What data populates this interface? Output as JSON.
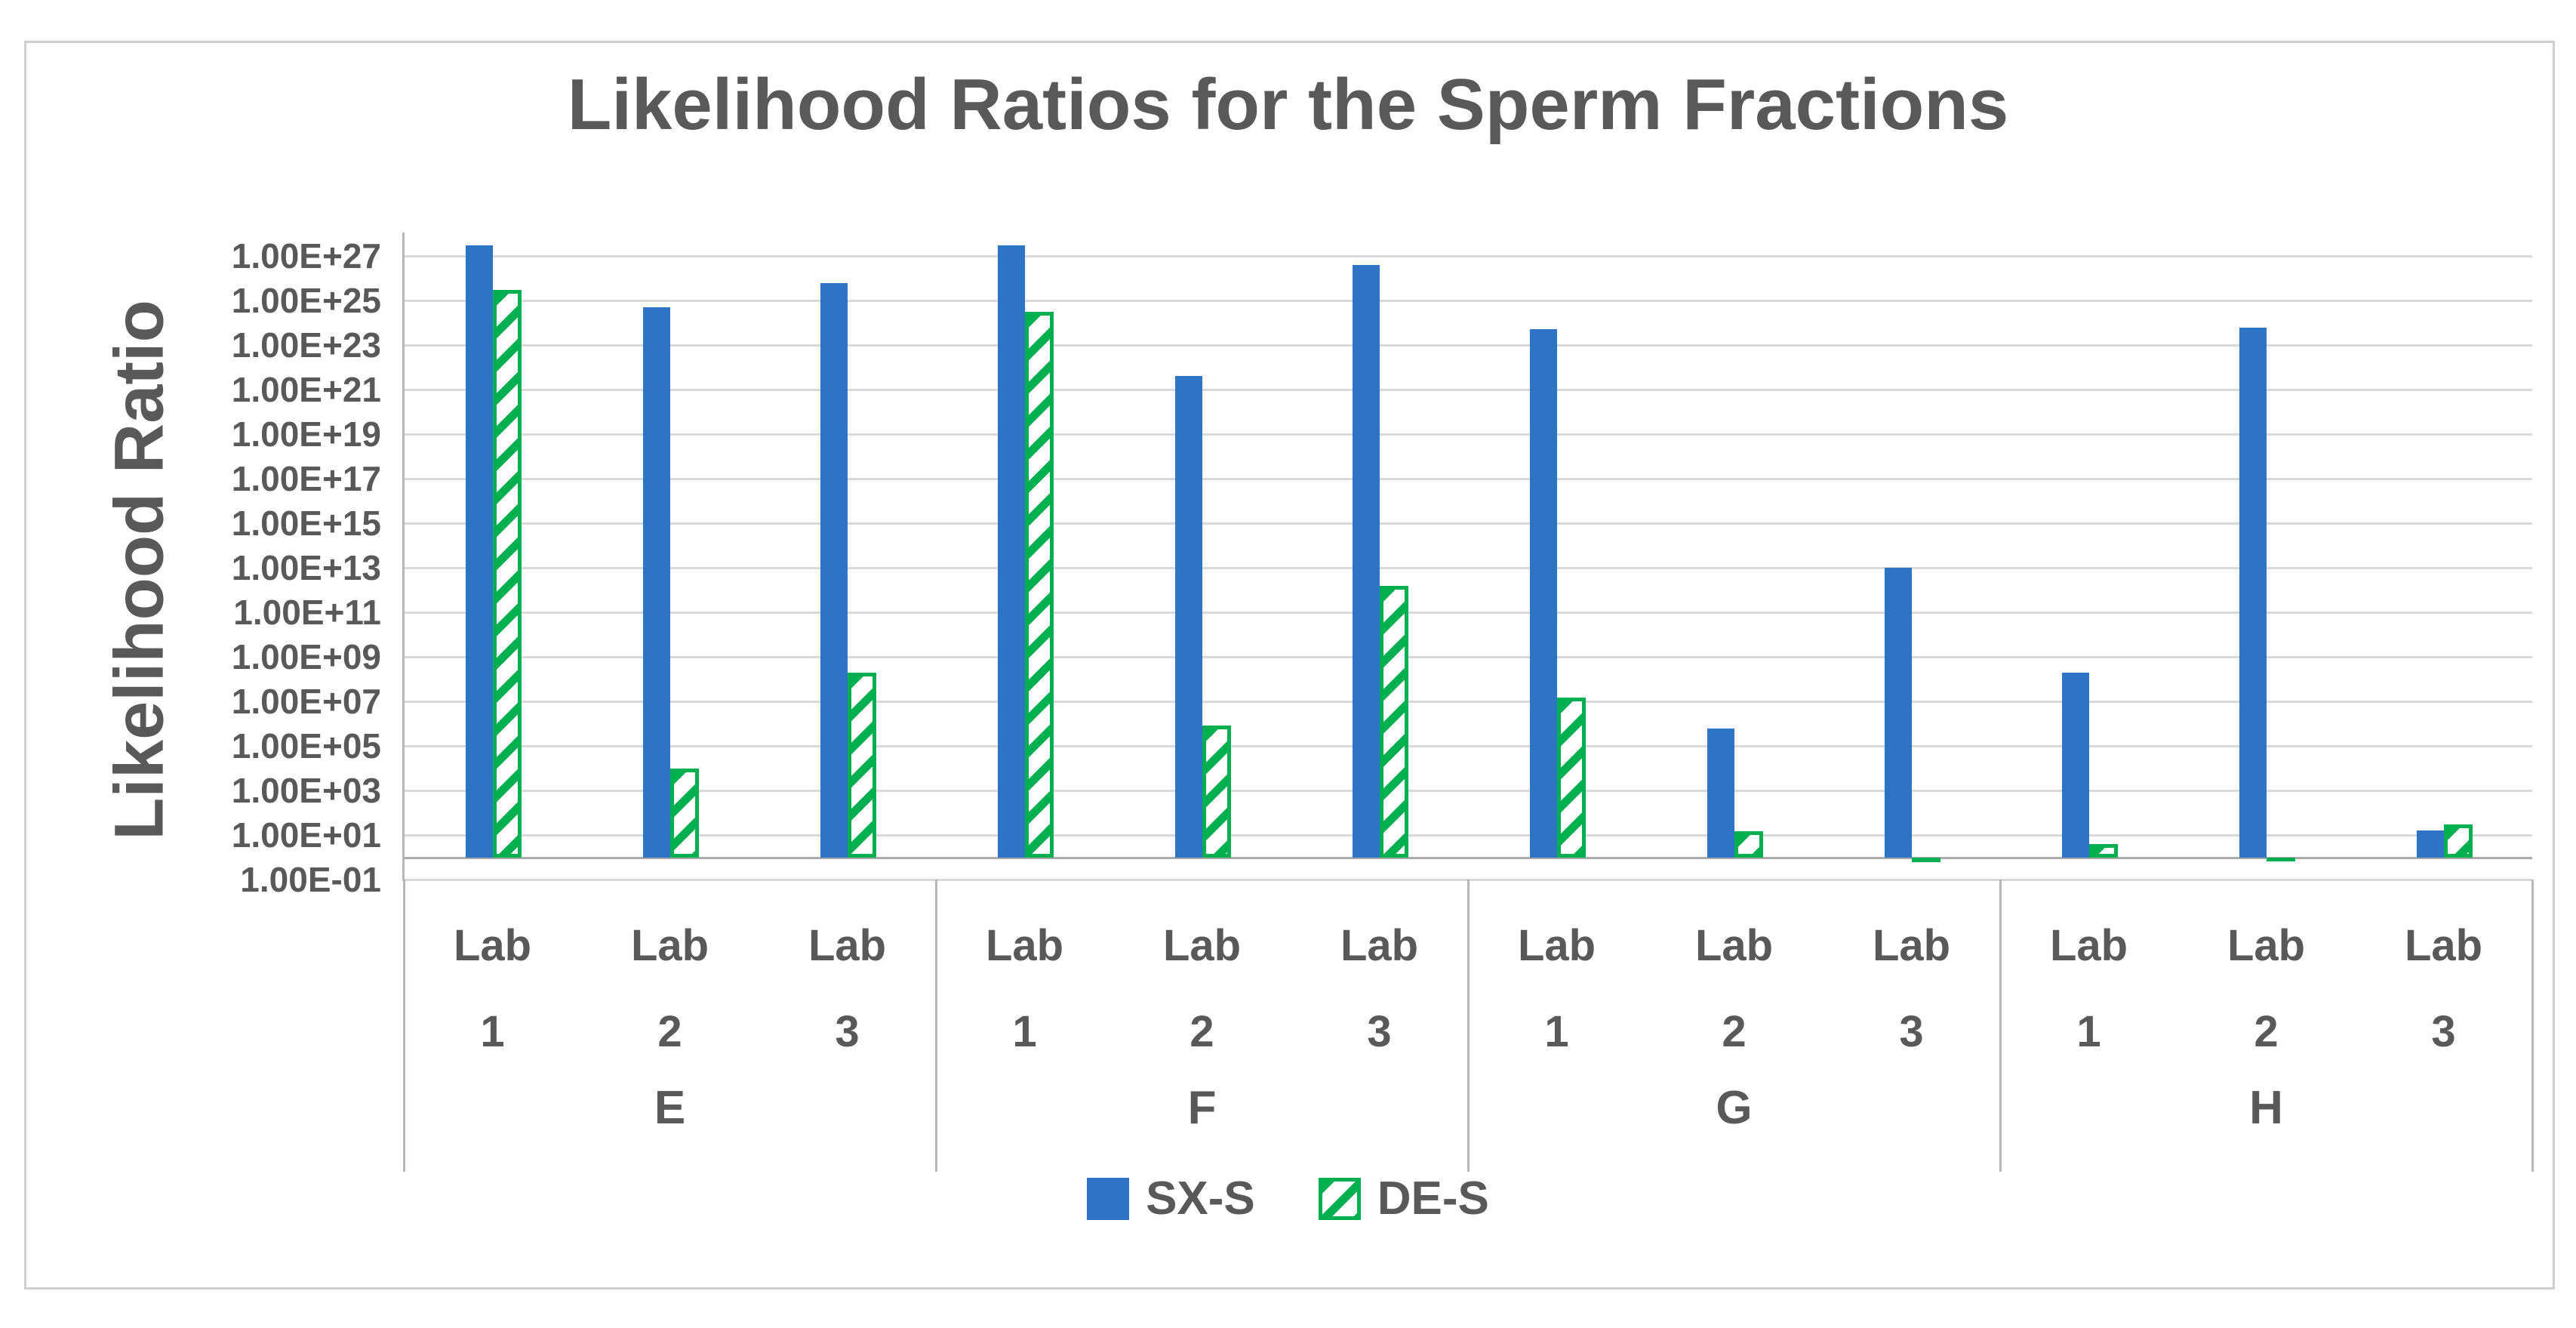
{
  "chart_data": {
    "type": "bar",
    "title": "Likelihood Ratios for the Sperm Fractions",
    "y_axis_label": "Likelihood Ratio",
    "scale": "log",
    "grid": true,
    "legend_position": "bottom",
    "y_ticks": [
      "1.00E+27",
      "1.00E+25",
      "1.00E+23",
      "1.00E+21",
      "1.00E+19",
      "1.00E+17",
      "1.00E+15",
      "1.00E+13",
      "1.00E+11",
      "1.00E+09",
      "1.00E+07",
      "1.00E+05",
      "1.00E+03",
      "1.00E+01",
      "1.00E-01"
    ],
    "y_min": 0.1,
    "y_max": 1e+28,
    "bar_base": 1,
    "groups": [
      {
        "label": "E",
        "labs": [
          "Lab 1",
          "Lab 2",
          "Lab 3"
        ]
      },
      {
        "label": "F",
        "labs": [
          "Lab 1",
          "Lab 2",
          "Lab 3"
        ]
      },
      {
        "label": "G",
        "labs": [
          "Lab 1",
          "Lab 2",
          "Lab 3"
        ]
      },
      {
        "label": "H",
        "labs": [
          "Lab 1",
          "Lab 2",
          "Lab 3"
        ]
      }
    ],
    "series": [
      {
        "name": "SX-S",
        "style": "solid",
        "color": "#2E74C4",
        "values": [
          3e+27,
          5e+24,
          6e+25,
          3e+27,
          4e+21,
          4e+26,
          5e+23,
          600000.0,
          10000000000000.0,
          200000000.0,
          6e+23,
          16
        ]
      },
      {
        "name": "DE-S",
        "style": "diagonal-hatch",
        "color": "#00B050",
        "values": [
          3e+25,
          10000.0,
          200000000.0,
          3e+24,
          800000.0,
          1500000000000.0,
          15000000.0,
          15,
          0.6,
          4,
          0.7,
          30
        ]
      }
    ]
  },
  "colors": {
    "text": "#595959",
    "gridline": "#D9D9D9",
    "axis": "#B7B7B7",
    "sxs_blue": "#2E74C4",
    "des_green": "#00B050"
  }
}
